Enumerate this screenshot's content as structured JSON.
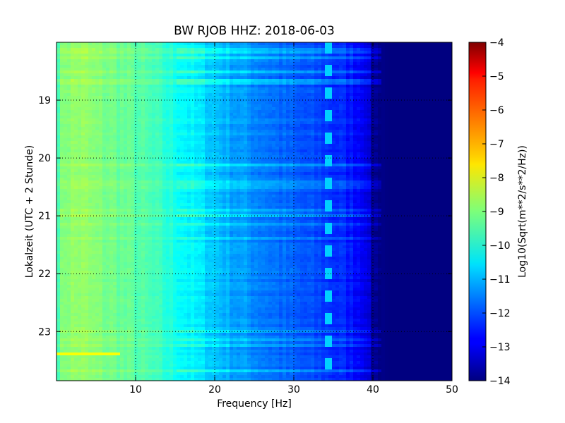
{
  "chart_data": {
    "type": "heatmap",
    "title": "BW RJOB HHZ: 2018-06-03",
    "xlabel": "Frequency [Hz]",
    "ylabel": "Lokalzeit (UTC + 2 Stunde)",
    "colorbar_label": "Log10(Sqrt(m**2/s**2/Hz))",
    "xlim": [
      0,
      50
    ],
    "ylim": [
      18.0,
      23.85
    ],
    "y_inverted": true,
    "x_ticks": [
      10,
      20,
      30,
      40,
      50
    ],
    "x_tick_labels": [
      "10",
      "20",
      "30",
      "40",
      "50"
    ],
    "y_ticks": [
      19,
      20,
      21,
      22,
      23
    ],
    "y_tick_labels": [
      "19",
      "20",
      "21",
      "22",
      "23"
    ],
    "colorbar_range": [
      -14,
      -4
    ],
    "colorbar_ticks": [
      -4,
      -5,
      -6,
      -7,
      -8,
      -9,
      -10,
      -11,
      -12,
      -13,
      -14
    ],
    "colorbar_tick_labels": [
      "−4",
      "−5",
      "−6",
      "−7",
      "−8",
      "−9",
      "−10",
      "−11",
      "−12",
      "−13",
      "−14"
    ],
    "colormap": "jet",
    "grid": "dotted",
    "frequency_profile": {
      "frequency_hz": [
        0,
        1,
        3,
        5,
        8,
        10,
        12,
        14,
        16,
        18,
        20,
        22,
        25,
        28,
        30,
        33,
        36,
        39,
        40,
        42,
        50
      ],
      "log10_amplitude": [
        -9.5,
        -8.9,
        -8.8,
        -9.0,
        -9.2,
        -9.4,
        -9.6,
        -9.9,
        -10.2,
        -10.5,
        -10.8,
        -11.1,
        -11.4,
        -11.7,
        -11.9,
        -12.1,
        -12.4,
        -12.8,
        -13.8,
        -14.0,
        -14.0
      ]
    },
    "tremor_band": {
      "frequency_hz": [
        34,
        35
      ],
      "log10_amplitude": -10.7
    },
    "strong_line": {
      "hour": 23.37,
      "frequency_hz": [
        0,
        8
      ],
      "log10_amplitude": -7.8
    }
  }
}
